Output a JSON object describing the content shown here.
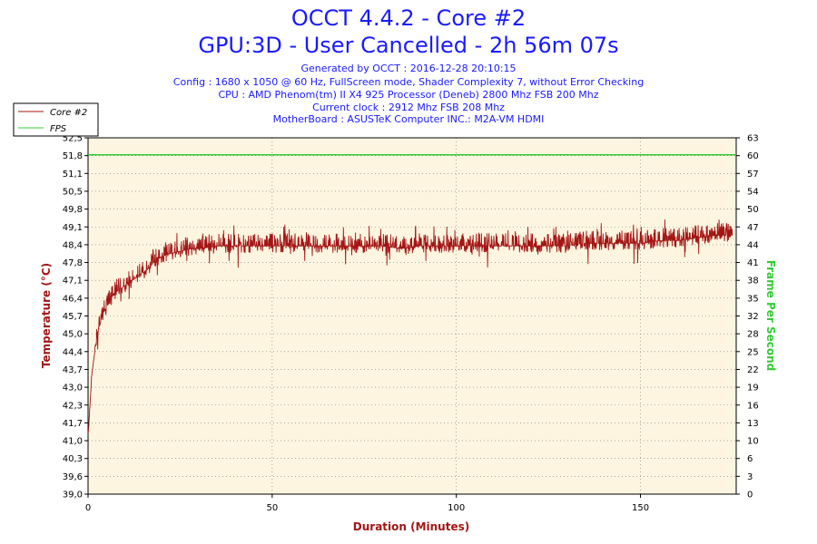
{
  "header": {
    "title": "OCCT 4.4.2 - Core #2",
    "subtitle": "GPU:3D - User Cancelled - 2h 56m 07s",
    "info_lines": [
      "Generated by OCCT : 2016-12-28 20:10:15",
      "Config : 1680 x 1050 @ 60 Hz, FullScreen mode, Shader Complexity 7, without Error Checking",
      "CPU : AMD Phenom(tm) II X4 925 Processor (Deneb) 2800 Mhz FSB 200 Mhz",
      "Current clock : 2912 Mhz FSB 208 Mhz",
      "MotherBoard : ASUSTeK Computer INC.: M2A-VM HDMI"
    ]
  },
  "colors": {
    "temperature": "#a31515",
    "fps": "#33cc33",
    "plot_background": "#fdf5e0",
    "title": "#1a1aff",
    "axis_label": "#a31515"
  },
  "chart_data": {
    "type": "line",
    "xlabel": "Duration (Minutes)",
    "ylabel": "Temperature (°C)",
    "y2label": "Frame Per Second",
    "xlim": [
      0,
      176
    ],
    "ylim": [
      39.0,
      52.5
    ],
    "y2lim": [
      0,
      63
    ],
    "x_ticks": [
      "0",
      "50",
      "100",
      "150"
    ],
    "y_ticks": [
      "39,0",
      "39,6",
      "40,3",
      "41,0",
      "41,7",
      "42,3",
      "43,0",
      "43,7",
      "44,4",
      "45,0",
      "45,7",
      "46,4",
      "47,1",
      "47,8",
      "48,4",
      "49,1",
      "49,8",
      "50,5",
      "51,1",
      "51,8",
      "52,5"
    ],
    "y2_ticks": [
      "0",
      "3",
      "6",
      "10",
      "13",
      "16",
      "19",
      "22",
      "25",
      "28",
      "32",
      "35",
      "38",
      "41",
      "44",
      "47",
      "50",
      "54",
      "57",
      "60",
      "63"
    ],
    "grid": true,
    "legend": {
      "position": "top-left",
      "entries": [
        "Core #2",
        "FPS"
      ]
    },
    "series": [
      {
        "name": "Core #2",
        "axis": "left",
        "x": [
          0,
          0.5,
          1,
          2,
          3,
          4,
          5,
          6,
          7,
          8,
          10,
          12,
          14,
          16,
          18,
          20,
          22,
          25,
          28,
          30,
          35,
          40,
          45,
          50,
          55,
          60,
          65,
          70,
          75,
          80,
          85,
          90,
          95,
          100,
          105,
          110,
          115,
          120,
          125,
          130,
          135,
          140,
          145,
          150,
          155,
          160,
          165,
          170,
          175
        ],
        "y": [
          41.2,
          42.3,
          43.5,
          44.6,
          45.3,
          45.8,
          46.1,
          46.3,
          46.6,
          46.7,
          46.9,
          47.1,
          47.3,
          47.5,
          47.8,
          48.0,
          48.1,
          48.2,
          48.3,
          48.3,
          48.4,
          48.4,
          48.4,
          48.4,
          48.4,
          48.4,
          48.4,
          48.4,
          48.4,
          48.4,
          48.3,
          48.4,
          48.4,
          48.4,
          48.4,
          48.4,
          48.4,
          48.4,
          48.4,
          48.4,
          48.5,
          48.5,
          48.5,
          48.5,
          48.6,
          48.6,
          48.7,
          48.8,
          48.8
        ]
      },
      {
        "name": "FPS",
        "axis": "right",
        "x": [
          0,
          176
        ],
        "y": [
          60,
          60
        ]
      }
    ]
  }
}
